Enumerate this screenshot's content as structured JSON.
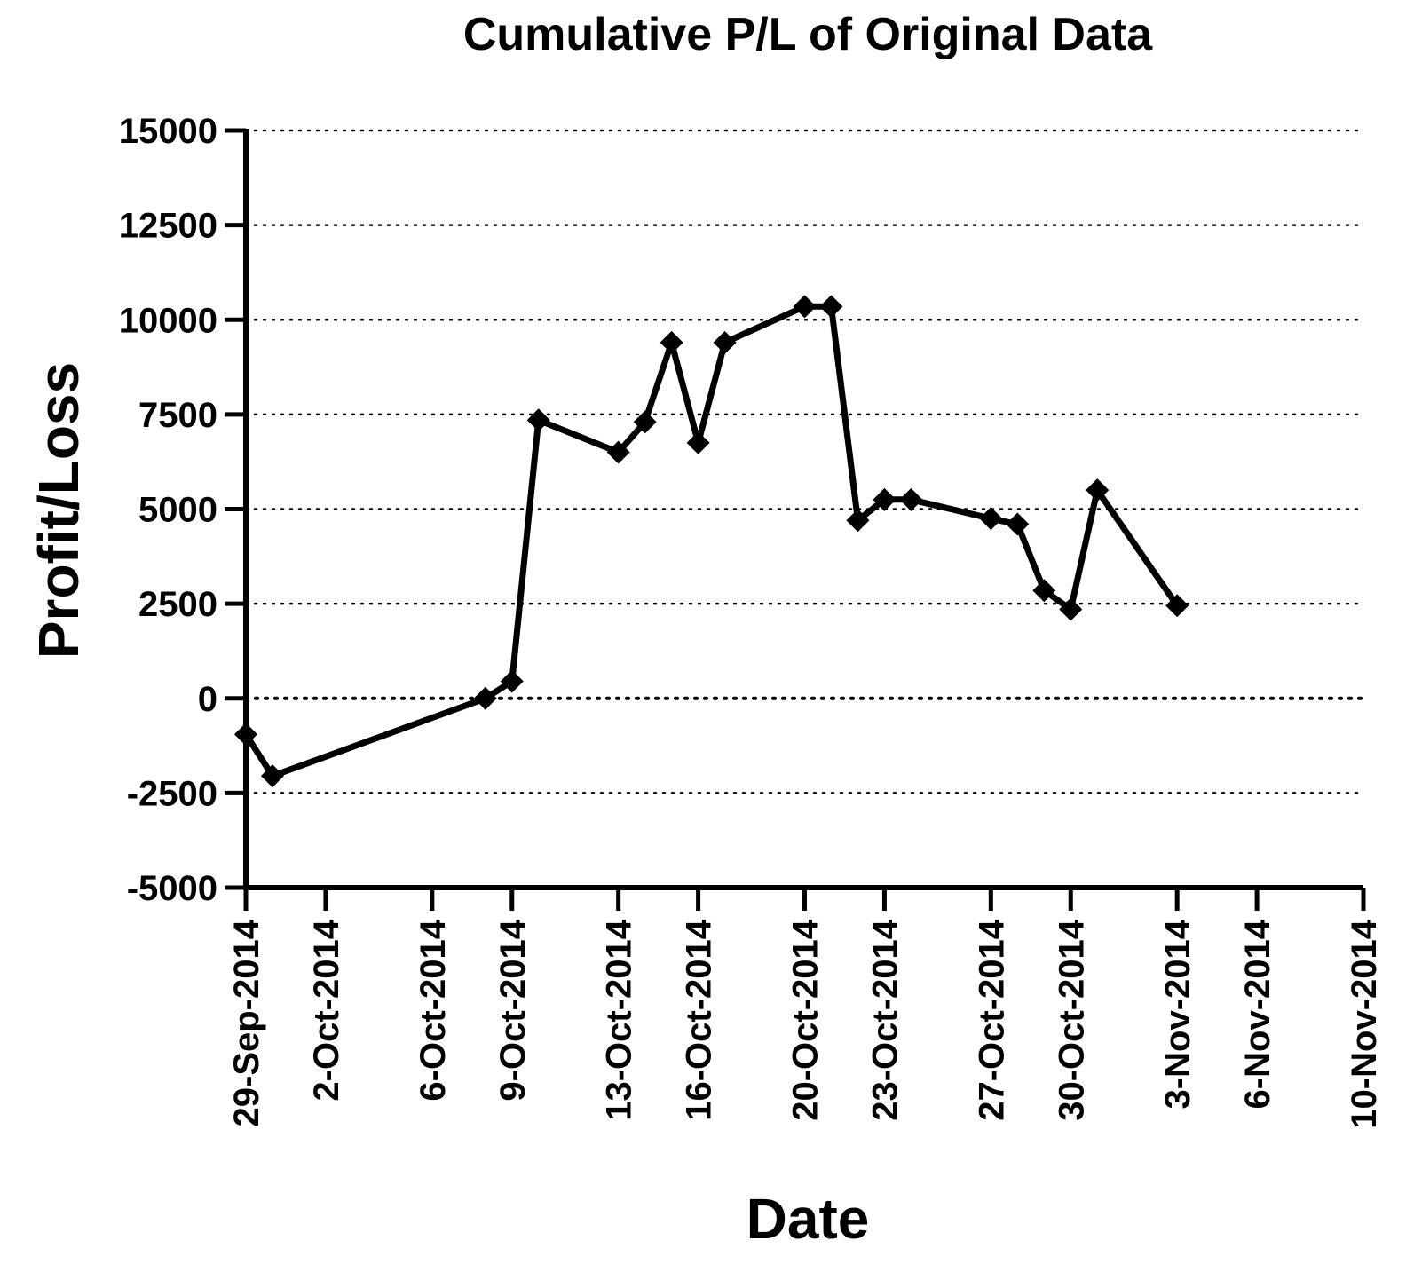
{
  "chart_data": {
    "type": "line",
    "title": "Cumulative P/L of Original Data",
    "xlabel": "Date",
    "ylabel": "Profit/Loss",
    "ylim": [
      -5000,
      15000
    ],
    "xlim": [
      "2014-09-29",
      "2014-11-10"
    ],
    "grid": "horizontal dotted",
    "y_ticks": [
      "15000",
      "12500",
      "10000",
      "7500",
      "5000",
      "2500",
      "0",
      "-2500",
      "-5000"
    ],
    "y_tick_values": [
      15000,
      12500,
      10000,
      7500,
      5000,
      2500,
      0,
      -2500,
      -5000
    ],
    "x_ticks": [
      "29-Sep-2014",
      "2-Oct-2014",
      "6-Oct-2014",
      "9-Oct-2014",
      "13-Oct-2014",
      "16-Oct-2014",
      "20-Oct-2014",
      "23-Oct-2014",
      "27-Oct-2014",
      "30-Oct-2014",
      "3-Nov-2014",
      "6-Nov-2014",
      "10-Nov-2014"
    ],
    "x_tick_dates": [
      "2014-09-29",
      "2014-10-02",
      "2014-10-06",
      "2014-10-09",
      "2014-10-13",
      "2014-10-16",
      "2014-10-20",
      "2014-10-23",
      "2014-10-27",
      "2014-10-30",
      "2014-11-03",
      "2014-11-06",
      "2014-11-10"
    ],
    "series": [
      {
        "color": "#000000",
        "marker": "diamond",
        "points": [
          {
            "x": "2014-09-29",
            "y": -950
          },
          {
            "x": "2014-09-30",
            "y": -2050
          },
          {
            "x": "2014-10-08",
            "y": 0
          },
          {
            "x": "2014-10-09",
            "y": 450
          },
          {
            "x": "2014-10-10",
            "y": 7350
          },
          {
            "x": "2014-10-13",
            "y": 6500
          },
          {
            "x": "2014-10-14",
            "y": 7300
          },
          {
            "x": "2014-10-15",
            "y": 9400
          },
          {
            "x": "2014-10-16",
            "y": 6750
          },
          {
            "x": "2014-10-17",
            "y": 9400
          },
          {
            "x": "2014-10-20",
            "y": 10350
          },
          {
            "x": "2014-10-21",
            "y": 10350
          },
          {
            "x": "2014-10-22",
            "y": 4700
          },
          {
            "x": "2014-10-23",
            "y": 5250
          },
          {
            "x": "2014-10-24",
            "y": 5250
          },
          {
            "x": "2014-10-27",
            "y": 4750
          },
          {
            "x": "2014-10-28",
            "y": 4600
          },
          {
            "x": "2014-10-29",
            "y": 2850
          },
          {
            "x": "2014-10-30",
            "y": 2350
          },
          {
            "x": "2014-10-31",
            "y": 5500
          },
          {
            "x": "2014-11-03",
            "y": 2450
          }
        ]
      }
    ]
  }
}
